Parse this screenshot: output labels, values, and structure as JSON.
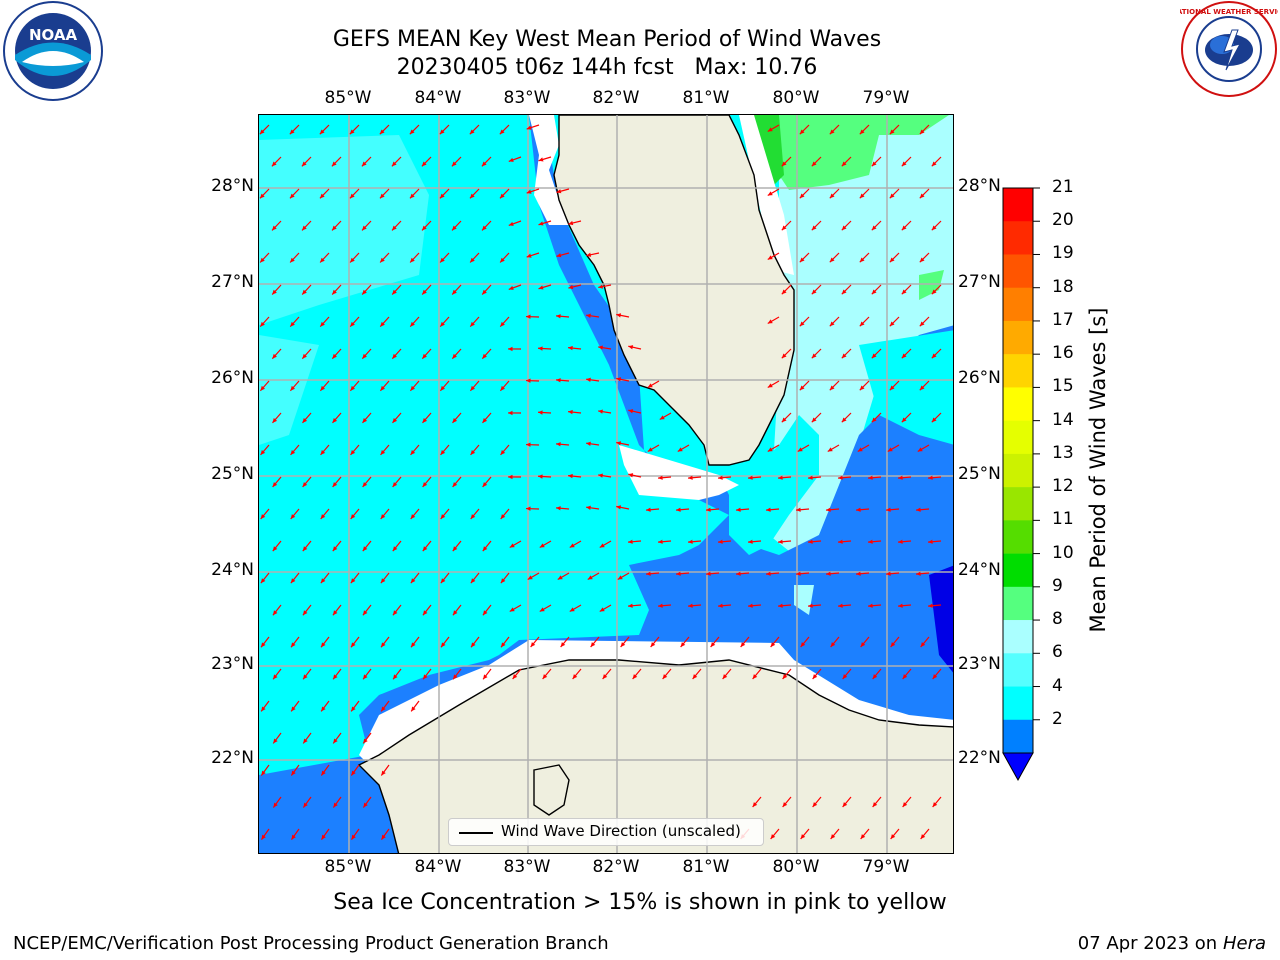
{
  "title": {
    "line1": "GEFS MEAN Key West Mean Period of Wind Waves",
    "line2": "20230405 t06z 144h fcst   Max: 10.76"
  },
  "axes": {
    "lon_ticks": [
      "85°W",
      "84°W",
      "83°W",
      "82°W",
      "81°W",
      "80°W",
      "79°W"
    ],
    "lat_ticks": [
      "28°N",
      "27°N",
      "26°N",
      "25°N",
      "24°N",
      "23°N",
      "22°N"
    ]
  },
  "colorbar": {
    "label": "Mean Period of Wind Waves [s]",
    "ticks": [
      "21",
      "20",
      "19",
      "18",
      "17",
      "16",
      "15",
      "14",
      "13",
      "12",
      "11",
      "10",
      "9",
      "8",
      "6",
      "4",
      "2"
    ],
    "colors": [
      "#ff0000",
      "#ff2a00",
      "#ff5500",
      "#ff7f00",
      "#ffaa00",
      "#ffd400",
      "#ffff00",
      "#e5ff00",
      "#ccf200",
      "#99e600",
      "#55dd00",
      "#00dd00",
      "#55ff7f",
      "#aaffff",
      "#55ffff",
      "#00ffff",
      "#0080ff"
    ],
    "under_color": "#0000ff"
  },
  "field_colors": {
    "ocean_light": "#00ffff",
    "ocean_paler": "#55ffff",
    "ocean_palest": "#aaffff",
    "ocean_dark": "#1c80ff",
    "ocean_darkest": "#0000e6",
    "green": "#55ff7f",
    "green_dark": "#22dd33",
    "land": "#efefdf",
    "arrows": "#ff0000",
    "grid": "#b0b0b0"
  },
  "legend": {
    "label": "Wind Wave Direction (unscaled)"
  },
  "ice_note": "Sea Ice Concentration > 15% is shown in pink to yellow",
  "footer": {
    "left": "NCEP/EMC/Verification Post Processing Product Generation Branch",
    "right_date": "07 Apr 2023 on",
    "right_host": "Hera"
  },
  "logos": {
    "noaa_text": "NOAA",
    "nws_text": "NATIONAL WEATHER SERVICE"
  }
}
